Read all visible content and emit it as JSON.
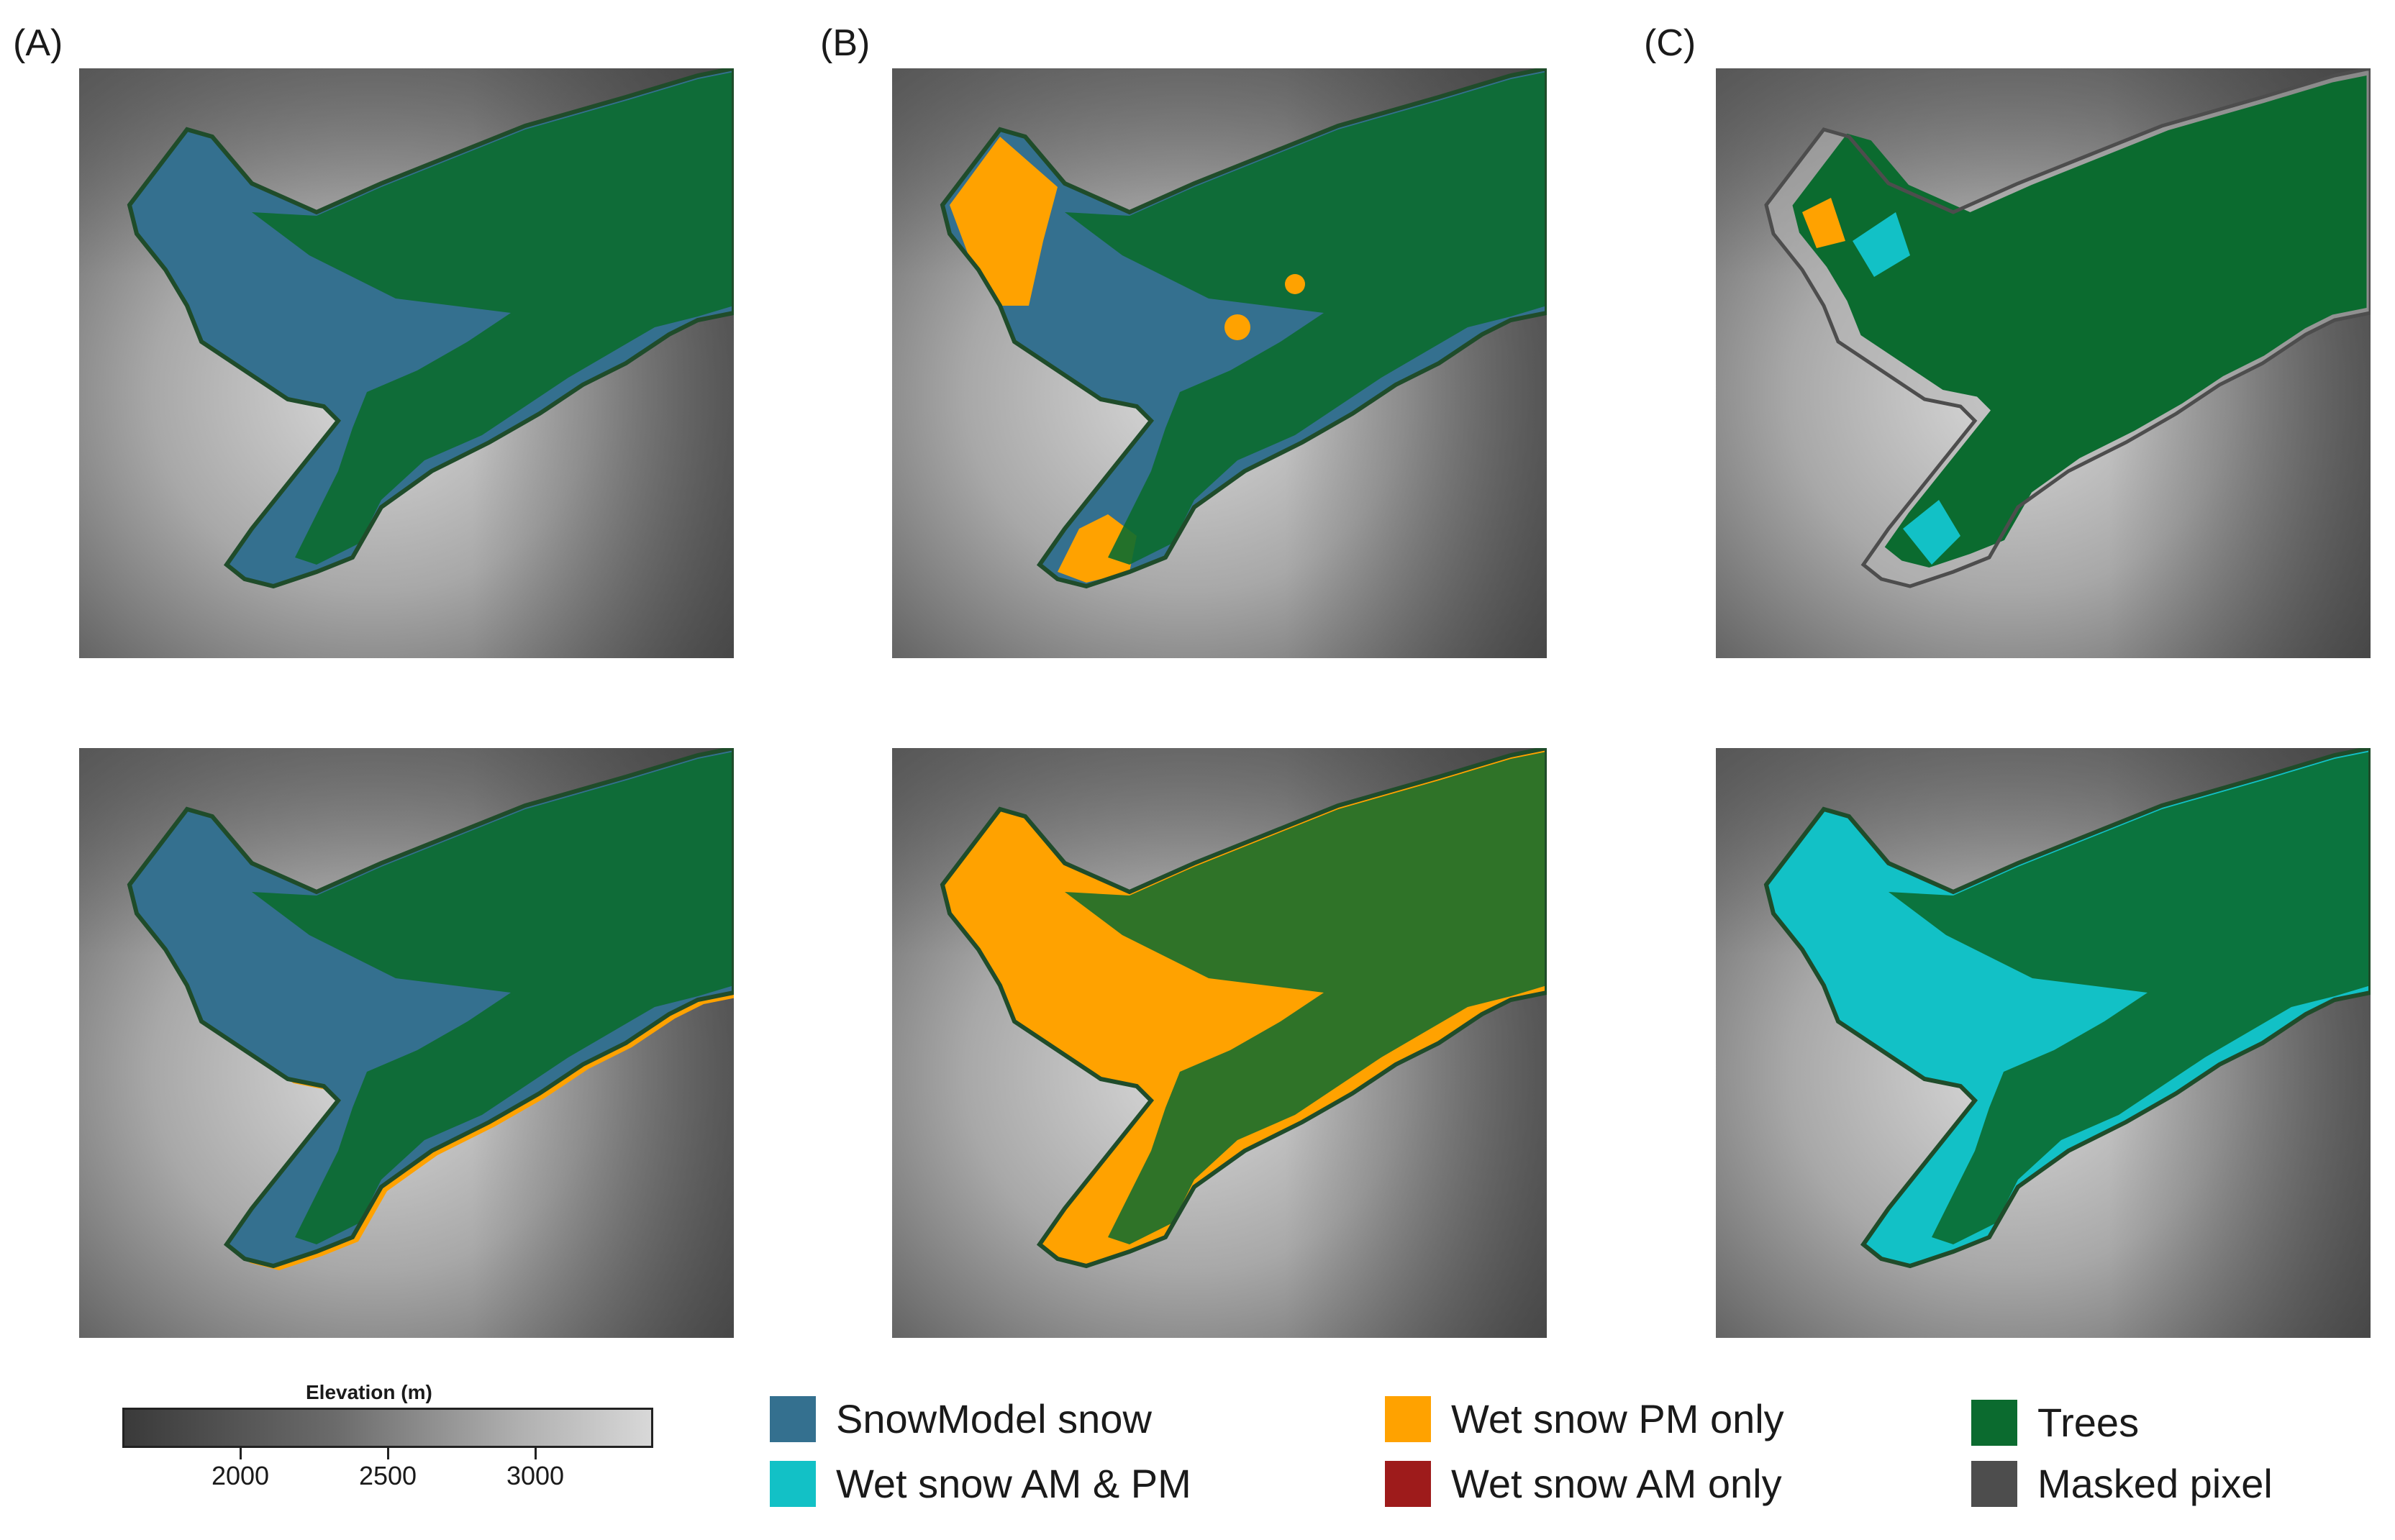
{
  "panels": [
    {
      "letter": "(A)"
    },
    {
      "letter": "(B)"
    },
    {
      "letter": "(C)"
    }
  ],
  "colorbar": {
    "title": "Elevation (m)",
    "min": 1600,
    "max": 3400,
    "ticks": [
      "2000",
      "2500",
      "3000"
    ]
  },
  "legend": [
    {
      "label": "SnowModel snow",
      "color": "#34708f"
    },
    {
      "label": "Wet snow AM & PM",
      "color": "#12c1c6"
    },
    {
      "label": "Wet snow PM only",
      "color": "#ffa200"
    },
    {
      "label": "Wet snow AM only",
      "color": "#9e1b1b"
    },
    {
      "label": "Trees",
      "color": "#0b6b2f"
    },
    {
      "label": "Masked pixel",
      "color": "#4d4d4d"
    }
  ],
  "maps": [
    {
      "row": 1,
      "col": "A",
      "dominant": "SnowModel snow"
    },
    {
      "row": 1,
      "col": "B",
      "dominant": "SnowModel snow"
    },
    {
      "row": 1,
      "col": "C",
      "dominant": "Trees"
    },
    {
      "row": 2,
      "col": "A",
      "dominant": "SnowModel snow"
    },
    {
      "row": 2,
      "col": "B",
      "dominant": "Wet snow PM only"
    },
    {
      "row": 2,
      "col": "C",
      "dominant": "Wet snow AM & PM"
    }
  ]
}
